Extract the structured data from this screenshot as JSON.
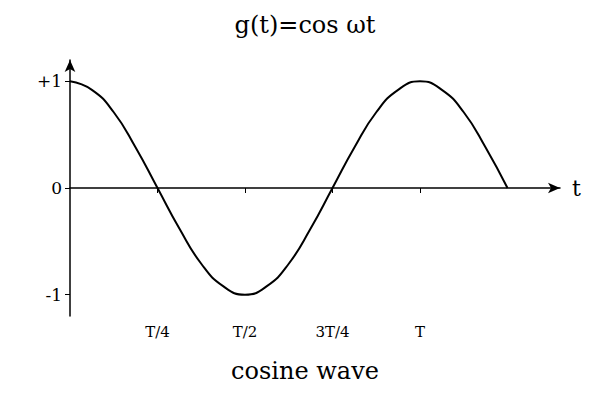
{
  "chart_data": {
    "type": "line",
    "title": "g(t)=cos ωt",
    "caption": "cosine wave",
    "x_label": "t",
    "x": [
      0,
      0.0625,
      0.125,
      0.1875,
      0.25,
      0.3125,
      0.375,
      0.4375,
      0.5,
      0.5625,
      0.625,
      0.6875,
      0.75,
      0.8125,
      0.875,
      0.9375,
      1,
      1.0625,
      1.125,
      1.1875,
      1.25
    ],
    "values": [
      1,
      0.92,
      0.71,
      0.38,
      0,
      -0.38,
      -0.71,
      -0.92,
      -1,
      -0.92,
      -0.71,
      -0.38,
      0,
      0.38,
      0.71,
      0.92,
      1,
      0.92,
      0.71,
      0.38,
      0
    ],
    "color": "#000000",
    "xlim": [
      0,
      1.4
    ],
    "xticks": [
      {
        "value": 0.25,
        "label": "T/4"
      },
      {
        "value": 0.5,
        "label": "T/2"
      },
      {
        "value": 0.75,
        "label": "3T/4"
      },
      {
        "value": 1,
        "label": "T"
      }
    ],
    "ylim": [
      -1.2,
      1.2
    ],
    "yticks": [
      {
        "value": -1,
        "label": "-1"
      },
      0,
      {
        "value": 1,
        "label": "+1"
      }
    ],
    "grid": false
  }
}
